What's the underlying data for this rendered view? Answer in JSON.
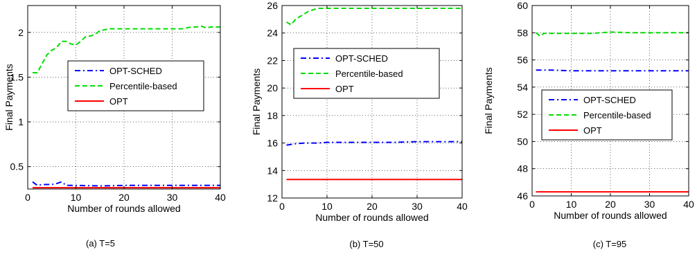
{
  "chart_data": [
    {
      "type": "line",
      "caption": "(a) T=5",
      "xlabel": "Number of rounds allowed",
      "ylabel": "Final Payments",
      "xlim": [
        0,
        40
      ],
      "ylim": [
        0.25,
        2.3
      ],
      "xticks": [
        0,
        10,
        20,
        30,
        40
      ],
      "yticks": [
        0.5,
        1,
        1.5,
        2
      ],
      "ytick_labels": [
        "0.5",
        "1",
        "1.5",
        "2"
      ],
      "grid": true,
      "legend_position": "middle",
      "series": [
        {
          "name": "OPT-SCHED",
          "color": "#0000ff",
          "style": "dashdot",
          "x": [
            1,
            2,
            3,
            4,
            5,
            6,
            7,
            8,
            10,
            15,
            20,
            25,
            30,
            35,
            40
          ],
          "y": [
            0.33,
            0.29,
            0.3,
            0.3,
            0.3,
            0.31,
            0.33,
            0.29,
            0.29,
            0.285,
            0.29,
            0.29,
            0.29,
            0.29,
            0.29
          ]
        },
        {
          "name": "Percentile-based",
          "color": "#00dd00",
          "style": "dashed",
          "x": [
            1,
            2,
            3,
            4,
            5,
            6,
            7,
            8,
            9,
            10,
            11,
            12,
            13,
            14,
            15,
            16,
            17,
            18,
            20,
            25,
            30,
            32,
            34,
            35,
            36,
            37,
            38,
            40
          ],
          "y": [
            1.55,
            1.55,
            1.65,
            1.75,
            1.8,
            1.83,
            1.9,
            1.9,
            1.87,
            1.86,
            1.9,
            1.95,
            1.96,
            1.98,
            2.02,
            2.03,
            2.04,
            2.04,
            2.04,
            2.04,
            2.04,
            2.04,
            2.06,
            2.06,
            2.07,
            2.05,
            2.06,
            2.06
          ]
        },
        {
          "name": "OPT",
          "color": "#ff0000",
          "style": "solid",
          "x": [
            1,
            40
          ],
          "y": [
            0.265,
            0.265
          ]
        }
      ]
    },
    {
      "type": "line",
      "caption": "(b) T=50",
      "xlabel": "Number of rounds allowed",
      "ylabel": "Final Payments",
      "xlim": [
        0,
        40
      ],
      "ylim": [
        12,
        26
      ],
      "xticks": [
        0,
        10,
        20,
        30,
        40
      ],
      "yticks": [
        12,
        14,
        16,
        18,
        20,
        22,
        24,
        26
      ],
      "ytick_labels": [
        "12",
        "14",
        "16",
        "18",
        "20",
        "22",
        "24",
        "26"
      ],
      "grid": true,
      "legend_position": "upper-middle",
      "series": [
        {
          "name": "OPT-SCHED",
          "color": "#0000ff",
          "style": "dashdot",
          "x": [
            1,
            2,
            3,
            5,
            8,
            10,
            15,
            20,
            25,
            30,
            35,
            40
          ],
          "y": [
            15.85,
            15.9,
            15.95,
            16.0,
            16.0,
            16.05,
            16.05,
            16.05,
            16.05,
            16.1,
            16.1,
            16.1
          ]
        },
        {
          "name": "Percentile-based",
          "color": "#00dd00",
          "style": "dashed",
          "x": [
            1,
            2,
            3,
            4,
            5,
            6,
            7,
            8,
            10,
            15,
            20,
            25,
            30,
            35,
            40
          ],
          "y": [
            24.8,
            24.6,
            25.0,
            25.2,
            25.4,
            25.6,
            25.7,
            25.8,
            25.8,
            25.8,
            25.8,
            25.8,
            25.8,
            25.8,
            25.8
          ]
        },
        {
          "name": "OPT",
          "color": "#ff0000",
          "style": "solid",
          "x": [
            1,
            40
          ],
          "y": [
            13.35,
            13.35
          ]
        }
      ]
    },
    {
      "type": "line",
      "caption": "(c) T=95",
      "xlabel": "Number of rounds allowed",
      "ylabel": "Final Payments",
      "xlim": [
        0,
        40
      ],
      "ylim": [
        46,
        60
      ],
      "xticks": [
        0,
        10,
        20,
        30,
        40
      ],
      "yticks": [
        46,
        48,
        50,
        52,
        54,
        56,
        58,
        60
      ],
      "ytick_labels": [
        "46",
        "48",
        "50",
        "52",
        "54",
        "56",
        "58",
        "60"
      ],
      "grid": true,
      "legend_position": "middle",
      "series": [
        {
          "name": "OPT-SCHED",
          "color": "#0000ff",
          "style": "dashdot",
          "x": [
            1,
            5,
            10,
            15,
            20,
            25,
            30,
            35,
            40
          ],
          "y": [
            55.25,
            55.25,
            55.2,
            55.2,
            55.2,
            55.2,
            55.2,
            55.2,
            55.2
          ]
        },
        {
          "name": "Percentile-based",
          "color": "#00dd00",
          "style": "dashed",
          "x": [
            1,
            2,
            3,
            5,
            10,
            15,
            20,
            25,
            30,
            35,
            40
          ],
          "y": [
            58.0,
            57.75,
            57.95,
            57.95,
            57.95,
            57.95,
            58.05,
            58.0,
            58.0,
            58.0,
            58.0
          ]
        },
        {
          "name": "OPT",
          "color": "#ff0000",
          "style": "solid",
          "x": [
            1,
            40
          ],
          "y": [
            46.3,
            46.3
          ]
        }
      ]
    }
  ]
}
